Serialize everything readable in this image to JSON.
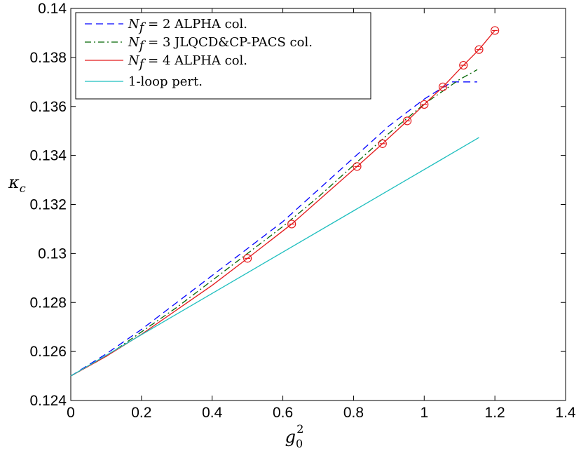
{
  "chart_data": {
    "type": "line",
    "title": "",
    "xlabel": {
      "base": "g",
      "sub": "0",
      "sup": "2"
    },
    "ylabel": {
      "base": "κ",
      "sub": "c"
    },
    "xlim": [
      0,
      1.4
    ],
    "ylim": [
      0.124,
      0.14
    ],
    "xticks": [
      0,
      0.2,
      0.4,
      0.6,
      0.8,
      1.0,
      1.2,
      1.4
    ],
    "yticks": [
      0.124,
      0.126,
      0.128,
      0.13,
      0.132,
      0.134,
      0.136,
      0.138,
      0.14
    ],
    "xtick_labels": [
      "0",
      "0.2",
      "0.4",
      "0.6",
      "0.8",
      "1",
      "1.2",
      "1.4"
    ],
    "ytick_labels": [
      "0.124",
      "0.126",
      "0.128",
      "0.13",
      "0.132",
      "0.134",
      "0.136",
      "0.138",
      "0.14"
    ],
    "grid": false,
    "legend_position": "top-left",
    "series": [
      {
        "name": "ALPHA col.",
        "legend_math": "N",
        "legend_sub": "f",
        "legend_eq": " = 2",
        "color": "#0000ff",
        "dash": "dashed",
        "x": [
          0,
          0.1,
          0.2,
          0.3,
          0.4,
          0.5,
          0.6,
          0.7,
          0.8,
          0.9,
          1.0,
          1.05,
          1.08,
          1.1,
          1.15
        ],
        "y": [
          0.125,
          0.1259,
          0.1269,
          0.128,
          0.1291,
          0.1302,
          0.1313,
          0.1326,
          0.1339,
          0.1352,
          0.1363,
          0.13675,
          0.137,
          0.137,
          0.137
        ]
      },
      {
        "name": "JLQCD&CP-PACS col.",
        "legend_math": "N",
        "legend_sub": "f",
        "legend_eq": " = 3",
        "color": "#006400",
        "dash": "dashdot",
        "x": [
          0,
          0.1,
          0.2,
          0.3,
          0.4,
          0.5,
          0.6,
          0.7,
          0.8,
          0.9,
          1.0,
          1.05,
          1.1,
          1.15
        ],
        "y": [
          0.125,
          0.1258,
          0.1268,
          0.1278,
          0.1289,
          0.13,
          0.1311,
          0.1323,
          0.1336,
          0.1349,
          0.1361,
          0.1366,
          0.1371,
          0.1375
        ]
      },
      {
        "name": "ALPHA col.",
        "legend_math": "N",
        "legend_sub": "f",
        "legend_eq": " = 4",
        "color": "#e41a1c",
        "dash": "solid",
        "markers": true,
        "x": [
          0,
          0.1,
          0.2,
          0.3,
          0.4,
          0.5,
          0.625,
          0.81,
          0.882,
          0.952,
          1.0,
          1.053,
          1.111,
          1.155,
          1.2
        ],
        "y": [
          0.125,
          0.1258,
          0.1267,
          0.1277,
          0.1287,
          0.1298,
          0.1312,
          0.13355,
          0.13448,
          0.13541,
          0.13608,
          0.1368,
          0.13768,
          0.13832,
          0.1391
        ],
        "marker_x": [
          0.5,
          0.625,
          0.81,
          0.882,
          0.952,
          1.0,
          1.053,
          1.111,
          1.155,
          1.2
        ],
        "marker_y": [
          0.1298,
          0.1312,
          0.13355,
          0.13448,
          0.13541,
          0.13608,
          0.1368,
          0.13768,
          0.13832,
          0.1391
        ]
      },
      {
        "name": "1-loop pert.",
        "color": "#1fbfbf",
        "dash": "solid",
        "x": [
          0,
          1.155
        ],
        "y": [
          0.125,
          0.13473
        ]
      }
    ]
  }
}
